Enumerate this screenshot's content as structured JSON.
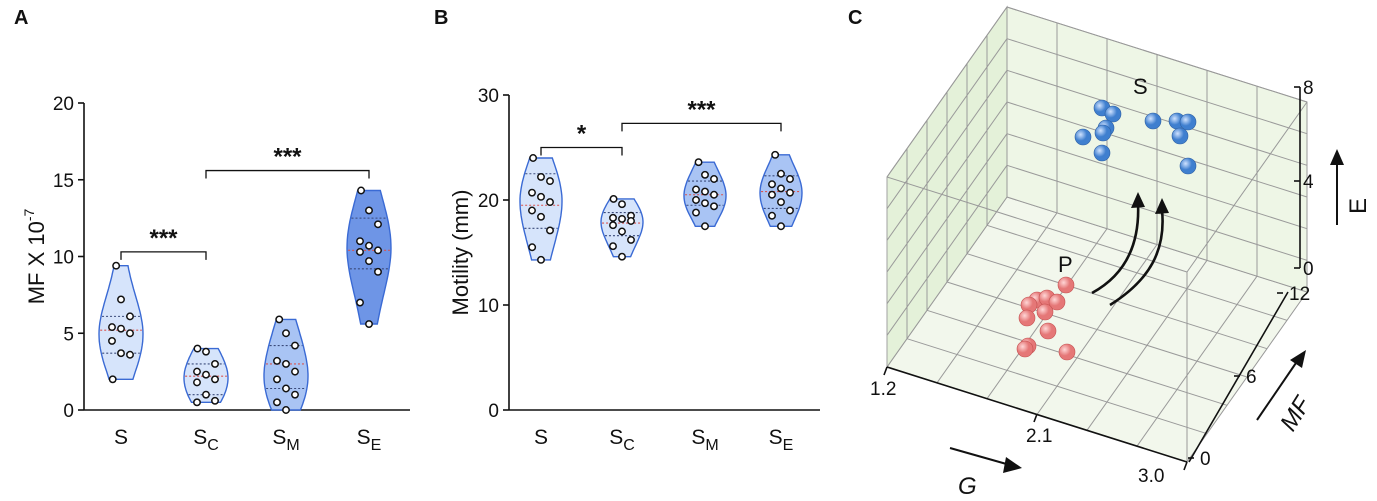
{
  "panels": [
    {
      "letter": "A"
    },
    {
      "letter": "B"
    },
    {
      "letter": "C"
    }
  ],
  "colors": {
    "violin_light_fill": "#d6e4fb",
    "violin_mid_fill": "#a9c4f4",
    "violin_dark_fill": "#6e95e6",
    "violin_stroke": "#3a6ad4",
    "median_line": "#d9534f",
    "quartile_line": "#3a4a7a",
    "sphere_blue": "#3f7fcf",
    "sphere_red": "#e57777",
    "box_face": "#e2f0d5"
  },
  "chart_data": [
    {
      "type": "violin",
      "panel": "A",
      "ylabel_main": "MF X 10",
      "ylabel_exp": "-7",
      "ylim": [
        0,
        20
      ],
      "yticks": [
        "0",
        "5",
        "10",
        "15",
        "20"
      ],
      "categories": [
        {
          "base": "S",
          "sub": ""
        },
        {
          "base": "S",
          "sub": "C"
        },
        {
          "base": "S",
          "sub": "M"
        },
        {
          "base": "S",
          "sub": "E"
        }
      ],
      "series": [
        {
          "values": [
            9.4,
            7.2,
            6.1,
            5.4,
            5.3,
            5.0,
            4.5,
            3.7,
            3.6,
            2.0
          ],
          "median": 5.2,
          "q1": 3.7,
          "q3": 6.1
        },
        {
          "values": [
            4.0,
            3.8,
            3.0,
            2.5,
            2.3,
            2.0,
            1.8,
            1.0,
            0.6,
            0.5
          ],
          "median": 2.2,
          "q1": 1.0,
          "q3": 3.0
        },
        {
          "values": [
            5.9,
            5.0,
            4.2,
            3.2,
            3.0,
            2.5,
            2.0,
            1.4,
            1.0,
            0.5,
            0.0
          ],
          "median": 3.0,
          "q1": 1.4,
          "q3": 4.2
        },
        {
          "values": [
            14.3,
            13.0,
            12.1,
            11.0,
            10.7,
            10.4,
            10.3,
            9.7,
            9.0,
            7.0,
            5.6
          ],
          "median": 10.4,
          "q1": 9.2,
          "q3": 12.5
        }
      ],
      "comparisons": [
        {
          "from": 0,
          "to": 1,
          "label": "***",
          "y": 10.3
        },
        {
          "from": 1,
          "to": 3,
          "label": "***",
          "y": 15.6
        }
      ]
    },
    {
      "type": "violin",
      "panel": "B",
      "ylabel_main": "Motility (mm)",
      "ylim": [
        0,
        30
      ],
      "yticks": [
        "0",
        "10",
        "20",
        "30"
      ],
      "categories": [
        {
          "base": "S",
          "sub": ""
        },
        {
          "base": "S",
          "sub": "C"
        },
        {
          "base": "S",
          "sub": "M"
        },
        {
          "base": "S",
          "sub": "E"
        }
      ],
      "series": [
        {
          "values": [
            24.0,
            22.2,
            21.8,
            20.7,
            20.3,
            19.8,
            19.0,
            18.4,
            17.1,
            15.5,
            14.3
          ],
          "median": 19.5,
          "q1": 17.3,
          "q3": 22.5
        },
        {
          "values": [
            20.1,
            19.6,
            18.5,
            18.3,
            18.2,
            18.0,
            17.6,
            17.0,
            16.2,
            15.6,
            14.6
          ],
          "median": 17.8,
          "q1": 16.6,
          "q3": 18.8
        },
        {
          "values": [
            23.6,
            22.4,
            22.0,
            21.0,
            20.8,
            20.5,
            20.0,
            19.7,
            19.4,
            18.8,
            17.5
          ],
          "median": 20.5,
          "q1": 19.5,
          "q3": 21.8
        },
        {
          "values": [
            24.3,
            22.5,
            22.0,
            21.5,
            21.1,
            20.7,
            20.5,
            19.8,
            19.0,
            18.5,
            17.5
          ],
          "median": 20.8,
          "q1": 19.2,
          "q3": 22.3
        }
      ],
      "comparisons": [
        {
          "from": 0,
          "to": 1,
          "label": "*",
          "y": 25.0
        },
        {
          "from": 1,
          "to": 3,
          "label": "***",
          "y": 27.3
        }
      ]
    },
    {
      "type": "scatter3d",
      "panel": "C",
      "axes": {
        "G": {
          "label": "G",
          "ticks": [
            "1.2",
            "2.1",
            "3.0"
          ]
        },
        "MF": {
          "label": "MF",
          "ticks": [
            "0",
            "6",
            "12"
          ]
        },
        "E": {
          "label": "E",
          "ticks": [
            "0",
            "4",
            "8"
          ]
        }
      },
      "groups": [
        {
          "name": "S",
          "count": 10
        },
        {
          "name": "P",
          "count": 11
        }
      ]
    }
  ]
}
